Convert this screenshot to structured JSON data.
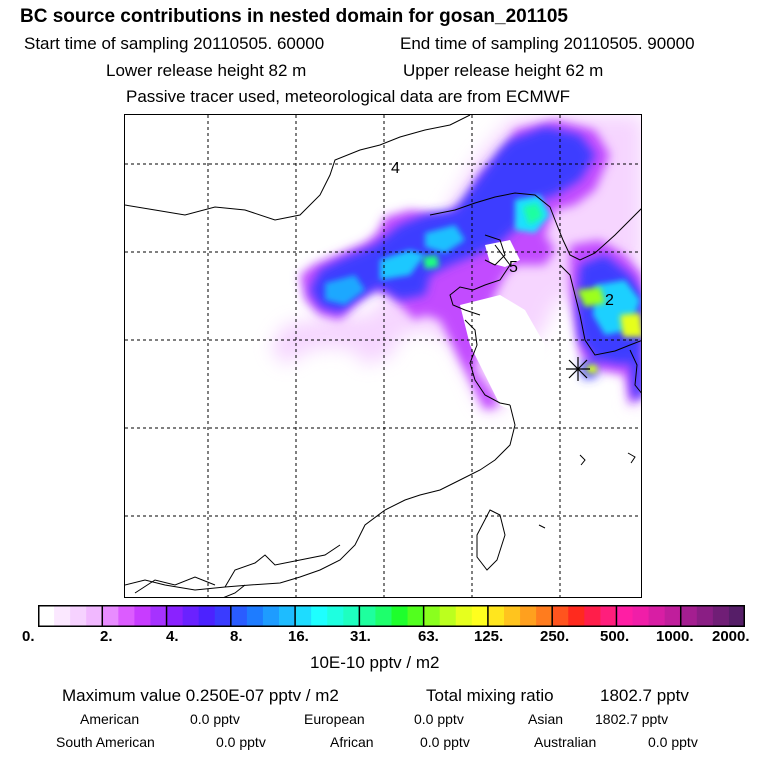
{
  "header": {
    "title": "BC  source contributions in nested domain for gosan_201105",
    "start_label": "Start time of sampling 20110505. 60000",
    "end_label": "End time of sampling 20110505. 90000",
    "lower_label": "Lower release height   82 m",
    "upper_label": "Upper release height   62 m",
    "tracer_label": "Passive tracer used, meteorological data are from ECMWF"
  },
  "map": {
    "markers": [
      "4",
      "5",
      "2"
    ],
    "receptor_icon": "receptor-star-icon"
  },
  "colorbar": {
    "ticks": [
      "0.",
      "2.",
      "4.",
      "8.",
      "16.",
      "31.",
      "63.",
      "125.",
      "250.",
      "500.",
      "1000.",
      "2000."
    ],
    "unit": "10E-10 pptv / m2",
    "colors": [
      "#ffffff",
      "#fbe8ff",
      "#f6d2ff",
      "#f1b8ff",
      "#e88cff",
      "#dc5cff",
      "#c83cff",
      "#a632ff",
      "#8a22ff",
      "#6a22ff",
      "#4c22ff",
      "#3a3cff",
      "#2a5cff",
      "#1e7cff",
      "#1e9cff",
      "#1ebcff",
      "#1edcff",
      "#1effff",
      "#1effe0",
      "#1effc0",
      "#1eff9e",
      "#1eff6c",
      "#1eff2c",
      "#52ff1e",
      "#8aff1e",
      "#bcff1e",
      "#e6ff1e",
      "#ffff1e",
      "#ffe61e",
      "#ffc41e",
      "#ffa01e",
      "#ff7c1e",
      "#ff541e",
      "#ff2a1e",
      "#ff1e4a",
      "#ff1e7c",
      "#ff1ea4",
      "#f01ea8",
      "#d81ea4",
      "#c01e9c",
      "#a41e90",
      "#8a1e84",
      "#701e76",
      "#561e68"
    ]
  },
  "summary": {
    "max_value": "Maximum value  0.250E-07 pptv / m2",
    "total_label": "Total mixing ratio",
    "total_value": "1802.7 pptv",
    "regions": [
      {
        "name": "American",
        "value": "0.0 pptv"
      },
      {
        "name": "European",
        "value": "0.0 pptv"
      },
      {
        "name": "Asian",
        "value": "1802.7 pptv"
      },
      {
        "name": "South American",
        "value": "0.0 pptv"
      },
      {
        "name": "African",
        "value": "0.0 pptv"
      },
      {
        "name": "Australian",
        "value": "0.0 pptv"
      }
    ]
  }
}
